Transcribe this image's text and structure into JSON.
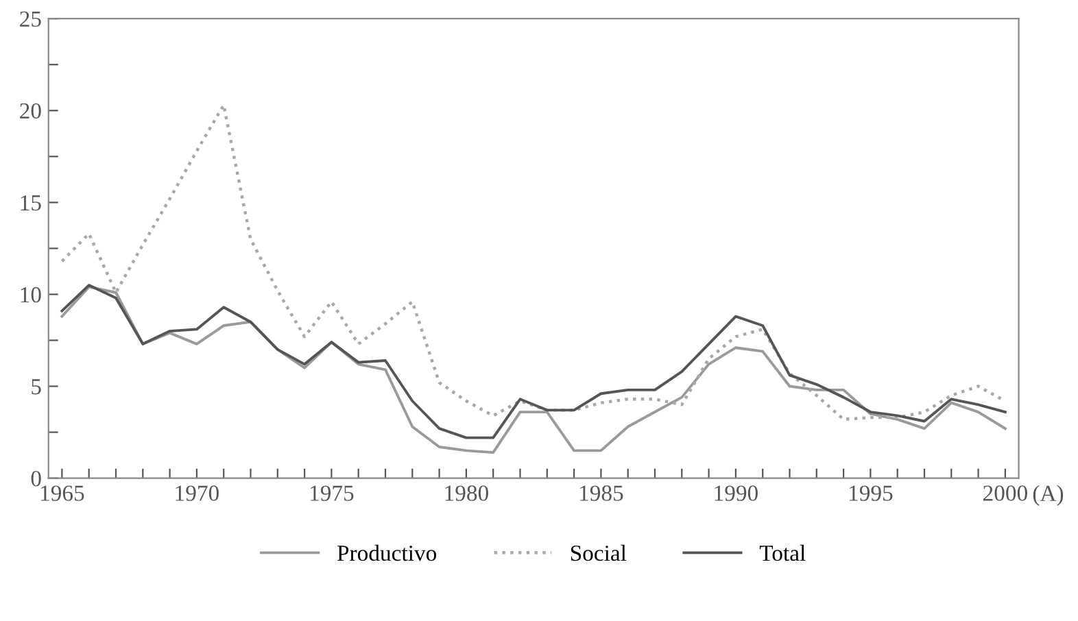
{
  "chart_data": {
    "type": "line",
    "xlabel": "(A)",
    "x": [
      1965,
      1966,
      1967,
      1968,
      1969,
      1970,
      1971,
      1972,
      1973,
      1974,
      1975,
      1976,
      1977,
      1978,
      1979,
      1980,
      1981,
      1982,
      1983,
      1984,
      1985,
      1986,
      1987,
      1988,
      1989,
      1990,
      1991,
      1992,
      1993,
      1994,
      1995,
      1996,
      1997,
      1998,
      1999,
      2000
    ],
    "series": [
      {
        "name": "Productivo",
        "color": "#9a9a9a",
        "line_style": "solid",
        "values": [
          8.8,
          10.4,
          10.1,
          7.3,
          7.9,
          7.3,
          8.3,
          8.5,
          7.0,
          6.0,
          7.4,
          6.2,
          5.9,
          2.8,
          1.7,
          1.5,
          1.4,
          3.6,
          3.6,
          1.5,
          1.5,
          2.8,
          3.6,
          4.4,
          6.2,
          7.1,
          6.9,
          5.0,
          4.8,
          4.8,
          3.5,
          3.2,
          2.7,
          4.1,
          3.6,
          2.7
        ]
      },
      {
        "name": "Social",
        "color": "#a8a8a8",
        "line_style": "dotted",
        "values": [
          11.8,
          13.3,
          10.1,
          12.7,
          15.2,
          17.8,
          20.3,
          13.0,
          10.2,
          7.7,
          9.6,
          7.3,
          8.4,
          9.6,
          5.2,
          4.2,
          3.4,
          4.2,
          3.7,
          3.7,
          4.1,
          4.3,
          4.3,
          4.0,
          6.5,
          7.7,
          8.1,
          5.7,
          4.5,
          3.2,
          3.3,
          3.3,
          3.6,
          4.5,
          5.0,
          4.2
        ]
      },
      {
        "name": "Total",
        "color": "#555555",
        "line_style": "solid",
        "values": [
          9.1,
          10.5,
          9.8,
          7.3,
          8.0,
          8.1,
          9.3,
          8.5,
          7.0,
          6.2,
          7.4,
          6.3,
          6.4,
          4.2,
          2.7,
          2.2,
          2.2,
          4.3,
          3.7,
          3.7,
          4.6,
          4.8,
          4.8,
          5.8,
          7.3,
          8.8,
          8.3,
          5.6,
          5.1,
          4.4,
          3.6,
          3.4,
          3.1,
          4.3,
          4.0,
          3.6
        ]
      }
    ],
    "xlim": [
      1964.5,
      2000.5
    ],
    "xticks": [
      1965,
      {
        "value": 1966,
        "label": null
      },
      {
        "value": 1967,
        "label": null
      },
      {
        "value": 1968,
        "label": null
      },
      {
        "value": 1969,
        "label": null
      },
      1970,
      {
        "value": 1971,
        "label": null
      },
      {
        "value": 1972,
        "label": null
      },
      {
        "value": 1973,
        "label": null
      },
      {
        "value": 1974,
        "label": null
      },
      1975,
      {
        "value": 1976,
        "label": null
      },
      {
        "value": 1977,
        "label": null
      },
      {
        "value": 1978,
        "label": null
      },
      {
        "value": 1979,
        "label": null
      },
      1980,
      {
        "value": 1981,
        "label": null
      },
      {
        "value": 1982,
        "label": null
      },
      {
        "value": 1983,
        "label": null
      },
      {
        "value": 1984,
        "label": null
      },
      1985,
      {
        "value": 1986,
        "label": null
      },
      {
        "value": 1987,
        "label": null
      },
      {
        "value": 1988,
        "label": null
      },
      {
        "value": 1989,
        "label": null
      },
      1990,
      {
        "value": 1991,
        "label": null
      },
      {
        "value": 1992,
        "label": null
      },
      {
        "value": 1993,
        "label": null
      },
      {
        "value": 1994,
        "label": null
      },
      1995,
      {
        "value": 1996,
        "label": null
      },
      {
        "value": 1997,
        "label": null
      },
      {
        "value": 1998,
        "label": null
      },
      {
        "value": 1999,
        "label": null
      },
      2000
    ],
    "ylim": [
      0,
      25
    ],
    "yticks": [
      0,
      {
        "value": 2.5,
        "label": null
      },
      5,
      {
        "value": 7.5,
        "label": null
      },
      10,
      {
        "value": 12.5,
        "label": null
      },
      15,
      {
        "value": 17.5,
        "label": null
      },
      20,
      {
        "value": 22.5,
        "label": null
      },
      25
    ],
    "grid": false,
    "legend": "bottom",
    "marker": "none"
  }
}
